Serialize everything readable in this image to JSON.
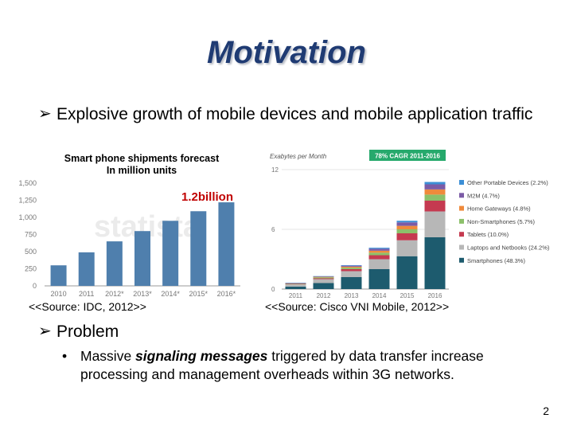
{
  "slide": {
    "title": "Motivation",
    "bullet1": "Explosive growth of mobile devices and mobile application traffic",
    "bullet2": "Problem",
    "sub_pre": "Massive ",
    "sub_em": "signaling messages",
    "sub_post": " triggered by data transfer increase processing and management overheads within 3G networks.",
    "page_number": "2"
  },
  "left_chart": {
    "title_line1": "Smart phone shipments forecast",
    "title_line2": "In million units",
    "annotation": "1.2billion",
    "watermark": "statista",
    "source": "<<Source: IDC, 2012>>"
  },
  "right_chart": {
    "ylabel": "Exabytes per Month",
    "badge": "78% CAGR 2011-2016",
    "source": "<<Source: Cisco VNI Mobile, 2012>>"
  },
  "chart_data": [
    {
      "type": "bar",
      "title": "Smart phone shipments forecast",
      "subtitle": "In million units",
      "categories": [
        "2010",
        "2011",
        "2012*",
        "2013*",
        "2014*",
        "2015*",
        "2016*"
      ],
      "values": [
        300,
        490,
        650,
        800,
        950,
        1090,
        1220
      ],
      "ytick_labels": [
        "1,500",
        "1,250",
        "1,000",
        "750",
        "500",
        "250",
        "0"
      ],
      "ylim": [
        0,
        1500
      ],
      "color": "#4f7fad",
      "grid": false
    },
    {
      "type": "bar",
      "stacked": true,
      "ylabel": "Exabytes per Month",
      "categories": [
        "2011",
        "2012",
        "2013",
        "2014",
        "2015",
        "2016"
      ],
      "ytick_labels": [
        "12",
        "6",
        "0"
      ],
      "ylim": [
        0,
        12
      ],
      "series": [
        {
          "name": "Smartphones (48.3%)",
          "color": "#1d5b6e",
          "values": [
            0.25,
            0.6,
            1.2,
            2.0,
            3.3,
            5.2
          ]
        },
        {
          "name": "Laptops and Netbooks (24.2%)",
          "color": "#b7b7b7",
          "values": [
            0.25,
            0.4,
            0.6,
            1.0,
            1.6,
            2.6
          ]
        },
        {
          "name": "Tablets (10.0%)",
          "color": "#c53a50",
          "values": [
            0.02,
            0.08,
            0.2,
            0.4,
            0.7,
            1.08
          ]
        },
        {
          "name": "Non-Smartphones (5.7%)",
          "color": "#8cc06a",
          "values": [
            0.05,
            0.1,
            0.15,
            0.25,
            0.4,
            0.61
          ]
        },
        {
          "name": "Home Gateways (4.8%)",
          "color": "#ef8a3c",
          "values": [
            0.02,
            0.05,
            0.1,
            0.2,
            0.35,
            0.52
          ]
        },
        {
          "name": "M2M (4.7%)",
          "color": "#7b5ba6",
          "values": [
            0.02,
            0.05,
            0.1,
            0.2,
            0.35,
            0.51
          ]
        },
        {
          "name": "Other Portable Devices (2.2%)",
          "color": "#3c8fd6",
          "values": [
            0.01,
            0.02,
            0.05,
            0.1,
            0.16,
            0.24
          ]
        }
      ]
    }
  ]
}
